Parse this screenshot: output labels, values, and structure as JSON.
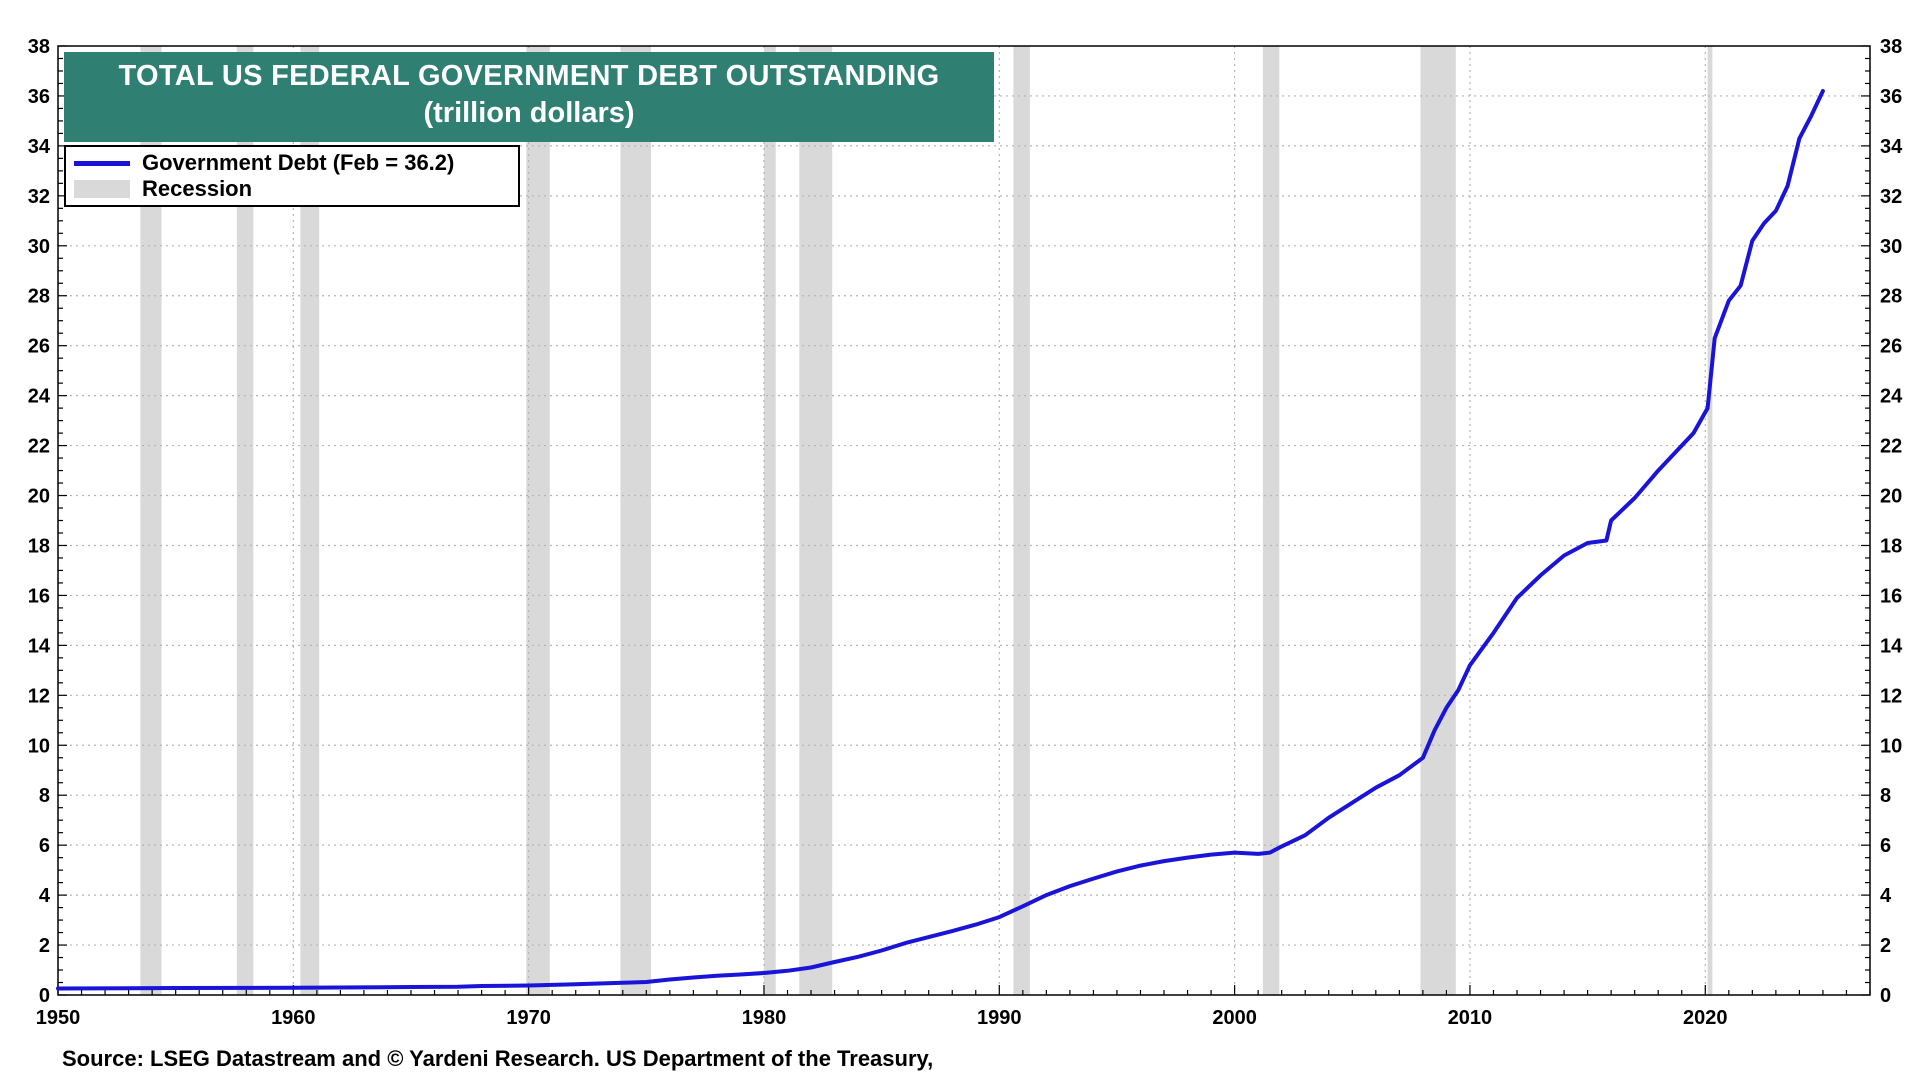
{
  "chart_data": {
    "type": "line",
    "title": "TOTAL US FEDERAL GOVERNMENT DEBT OUTSTANDING",
    "subtitle": "(trillion dollars)",
    "xlabel": "",
    "ylabel": "",
    "xlim": [
      1950,
      2027
    ],
    "ylim": [
      0,
      38
    ],
    "x_ticks": [
      1950,
      1960,
      1970,
      1980,
      1990,
      2000,
      2010,
      2020
    ],
    "y_ticks": [
      0,
      2,
      4,
      6,
      8,
      10,
      12,
      14,
      16,
      18,
      20,
      22,
      24,
      26,
      28,
      30,
      32,
      34,
      36,
      38
    ],
    "grid": true,
    "legend_position": "top-left",
    "legend": [
      {
        "label": "Government Debt (Feb = 36.2)",
        "kind": "line",
        "color": "#1a14d8"
      },
      {
        "label": "Recession",
        "kind": "band",
        "color": "#d9d9d9"
      }
    ],
    "recessions": [
      [
        1953.5,
        1954.4
      ],
      [
        1957.6,
        1958.3
      ],
      [
        1960.3,
        1961.1
      ],
      [
        1969.9,
        1970.9
      ],
      [
        1973.9,
        1975.2
      ],
      [
        1980.0,
        1980.5
      ],
      [
        1981.5,
        1982.9
      ],
      [
        1990.6,
        1991.3
      ],
      [
        2001.2,
        2001.9
      ],
      [
        2007.9,
        2009.4
      ],
      [
        2020.1,
        2020.3
      ]
    ],
    "series": [
      {
        "name": "Government Debt",
        "color": "#1a14d8",
        "points": [
          [
            1950,
            0.26
          ],
          [
            1953,
            0.27
          ],
          [
            1955,
            0.28
          ],
          [
            1960,
            0.29
          ],
          [
            1965,
            0.32
          ],
          [
            1967,
            0.33
          ],
          [
            1968,
            0.36
          ],
          [
            1970,
            0.38
          ],
          [
            1972,
            0.43
          ],
          [
            1974,
            0.49
          ],
          [
            1975,
            0.52
          ],
          [
            1976,
            0.62
          ],
          [
            1977,
            0.7
          ],
          [
            1978,
            0.77
          ],
          [
            1979,
            0.82
          ],
          [
            1980,
            0.88
          ],
          [
            1981,
            0.97
          ],
          [
            1982,
            1.1
          ],
          [
            1983,
            1.32
          ],
          [
            1984,
            1.53
          ],
          [
            1985,
            1.78
          ],
          [
            1986,
            2.08
          ],
          [
            1987,
            2.32
          ],
          [
            1988,
            2.56
          ],
          [
            1989,
            2.82
          ],
          [
            1990,
            3.12
          ],
          [
            1991,
            3.55
          ],
          [
            1992,
            4.0
          ],
          [
            1993,
            4.36
          ],
          [
            1994,
            4.66
          ],
          [
            1995,
            4.95
          ],
          [
            1996,
            5.18
          ],
          [
            1997,
            5.36
          ],
          [
            1998,
            5.5
          ],
          [
            1999,
            5.62
          ],
          [
            2000,
            5.7
          ],
          [
            2001,
            5.65
          ],
          [
            2001.5,
            5.7
          ],
          [
            2002,
            5.95
          ],
          [
            2003,
            6.4
          ],
          [
            2004,
            7.1
          ],
          [
            2005,
            7.7
          ],
          [
            2006,
            8.3
          ],
          [
            2007,
            8.8
          ],
          [
            2008,
            9.5
          ],
          [
            2008.5,
            10.6
          ],
          [
            2009,
            11.5
          ],
          [
            2009.5,
            12.2
          ],
          [
            2010,
            13.2
          ],
          [
            2011,
            14.5
          ],
          [
            2012,
            15.9
          ],
          [
            2013,
            16.8
          ],
          [
            2014,
            17.6
          ],
          [
            2015,
            18.1
          ],
          [
            2015.8,
            18.2
          ],
          [
            2016,
            19.0
          ],
          [
            2017,
            19.9
          ],
          [
            2018,
            21.0
          ],
          [
            2019,
            22.0
          ],
          [
            2019.5,
            22.5
          ],
          [
            2020.1,
            23.5
          ],
          [
            2020.4,
            26.3
          ],
          [
            2021,
            27.8
          ],
          [
            2021.5,
            28.4
          ],
          [
            2022,
            30.2
          ],
          [
            2022.5,
            30.9
          ],
          [
            2023,
            31.4
          ],
          [
            2023.5,
            32.4
          ],
          [
            2024,
            34.3
          ],
          [
            2024.5,
            35.2
          ],
          [
            2025,
            36.2
          ]
        ]
      }
    ],
    "source": "Source: LSEG Datastream and © Yardeni Research. US Department of the Treasury,"
  }
}
